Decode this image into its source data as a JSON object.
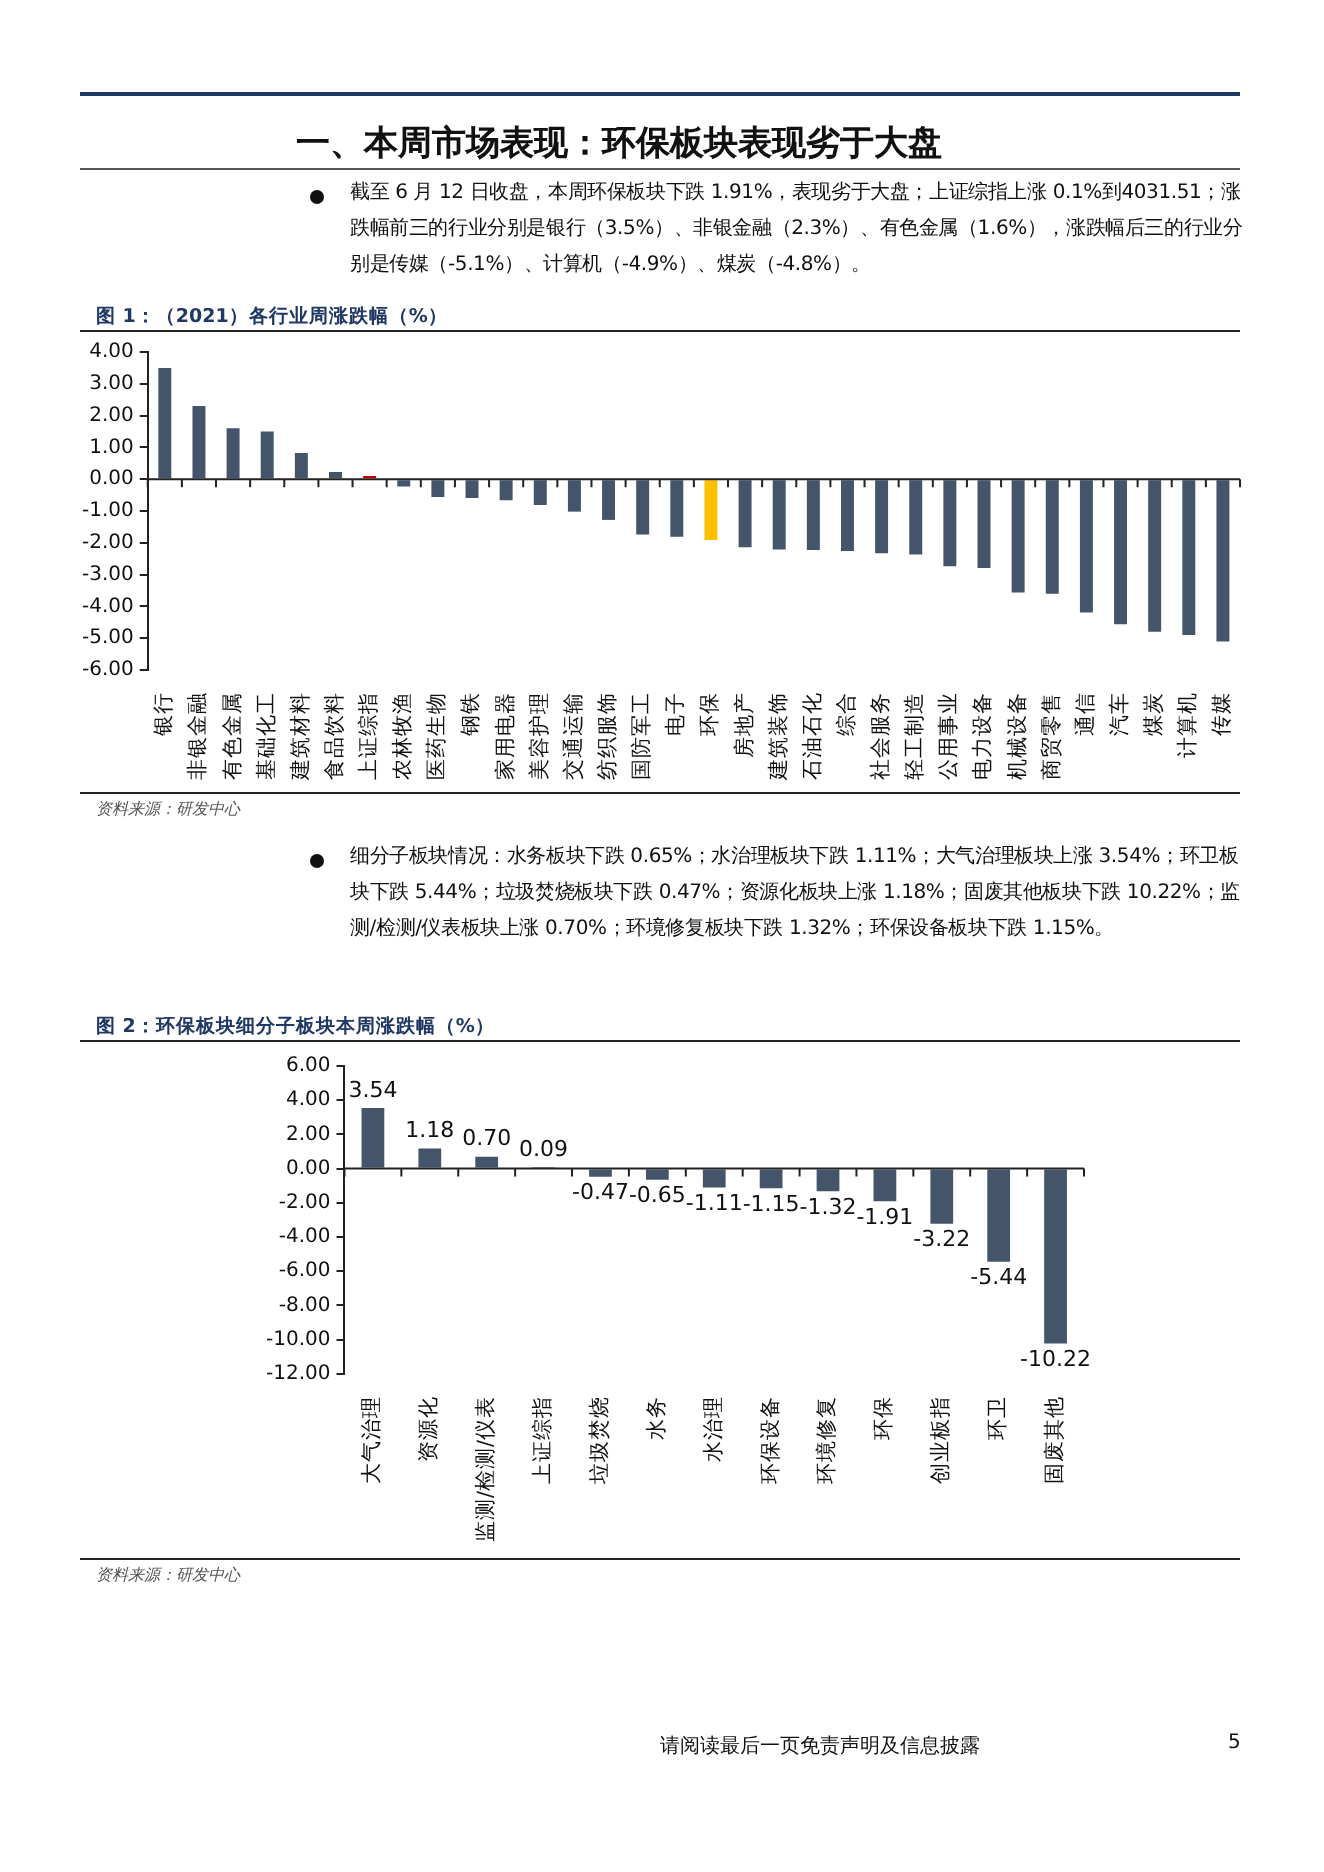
{
  "chart_data": [
    {
      "type": "bar",
      "title": "图 1：（2021）各行业周涨跌幅（%）",
      "annotations": [
        "一、本周市场表现：环保板块表现劣于大盘",
        "截至 6 月 12 日收盘，本周环保板块下跌 1.91%，表现劣于大盘；上证综指上涨 0.1%到4031.51；涨跌幅前三的行业分别是银行（3.5%）、非银金融（2.3%）、有色金属（1.6%），涨跌幅后三的行业分别是传媒（-5.1%）、计算机（-4.9%）、煤炭（-4.8%）。",
        "资料来源：研发中心"
      ],
      "categories": [
        "银行",
        "非银金融",
        "有色金属",
        "基础化工",
        "建筑材料",
        "食品饮料",
        "上证综指",
        "农林牧渔",
        "医药生物",
        "钢铁",
        "家用电器",
        "美容护理",
        "交通运输",
        "纺织服饰",
        "国防军工",
        "电子",
        "环保",
        "房地产",
        "建筑装饰",
        "石油石化",
        "综合",
        "社会服务",
        "轻工制造",
        "公用事业",
        "电力设备",
        "机械设备",
        "商贸零售",
        "通信",
        "汽车",
        "煤炭",
        "计算机",
        "传媒"
      ],
      "values": [
        3.5,
        2.3,
        1.6,
        1.5,
        0.82,
        0.23,
        0.1,
        -0.23,
        -0.56,
        -0.59,
        -0.66,
        -0.81,
        -1.02,
        -1.28,
        -1.74,
        -1.81,
        -1.91,
        -2.14,
        -2.21,
        -2.23,
        -2.26,
        -2.33,
        -2.37,
        -2.74,
        -2.79,
        -3.56,
        -3.6,
        -4.19,
        -4.56,
        -4.8,
        -4.9,
        -5.1
      ],
      "colors": [
        "#44546a",
        "#44546a",
        "#44546a",
        "#44546a",
        "#44546a",
        "#44546a",
        "#c00000",
        "#44546a",
        "#44546a",
        "#44546a",
        "#44546a",
        "#44546a",
        "#44546a",
        "#44546a",
        "#44546a",
        "#44546a",
        "#ffc000",
        "#44546a",
        "#44546a",
        "#44546a",
        "#44546a",
        "#44546a",
        "#44546a",
        "#44546a",
        "#44546a",
        "#44546a",
        "#44546a",
        "#44546a",
        "#44546a",
        "#44546a",
        "#44546a",
        "#44546a"
      ],
      "ylim": [
        -6,
        4
      ],
      "yticks": [
        {
          "value": 4,
          "label": "4.00"
        },
        {
          "value": 3,
          "label": "3.00"
        },
        {
          "value": 2,
          "label": "2.00"
        },
        {
          "value": 1,
          "label": "1.00"
        },
        {
          "value": 0,
          "label": "0.00"
        },
        {
          "value": -1,
          "label": "-1.00"
        },
        {
          "value": -2,
          "label": "-2.00"
        },
        {
          "value": -3,
          "label": "-3.00"
        },
        {
          "value": -4,
          "label": "-4.00"
        },
        {
          "value": -5,
          "label": "-5.00"
        },
        {
          "value": -6,
          "label": "-6.00"
        }
      ]
    },
    {
      "type": "bar",
      "title": "图 2：环保板块细分子板块本周涨跌幅（%）",
      "annotations": [
        "细分子板块情况：水务板块下跌 0.65%；水治理板块下跌 1.11%；大气治理板块上涨 3.54%；环卫板块下跌 5.44%；垃圾焚烧板块下跌 0.47%；资源化板块上涨 1.18%；固废其他板块下跌 10.22%；监测/检测/仪表板块上涨 0.70%；环境修复板块下跌 1.32%；环保设备板块下跌 1.15%。",
        "资料来源：研发中心",
        "请阅读最后一页免责声明及信息披露",
        "5"
      ],
      "categories": [
        "大气治理",
        "资源化",
        "监测/检测/仪表",
        "上证综指",
        "垃圾焚烧",
        "水务",
        "水治理",
        "环保设备",
        "环境修复",
        "环保",
        "创业板指",
        "环卫",
        "固废其他"
      ],
      "values": [
        3.54,
        1.18,
        0.7,
        0.09,
        -0.47,
        -0.65,
        -1.11,
        -1.15,
        -1.32,
        -1.91,
        -3.22,
        -5.44,
        -10.22
      ],
      "value_labels": [
        "3.54",
        "1.18",
        "0.70",
        "0.09",
        "-0.47",
        "-0.65",
        "-1.11",
        "-1.15",
        "-1.32",
        "-1.91",
        "-3.22",
        "-5.44",
        "-10.22"
      ],
      "color": "#44546a",
      "ylim": [
        -12,
        6
      ],
      "yticks": [
        {
          "value": 6,
          "label": "6.00"
        },
        {
          "value": 4,
          "label": "4.00"
        },
        {
          "value": 2,
          "label": "2.00"
        },
        {
          "value": 0,
          "label": "0.00"
        },
        {
          "value": -2,
          "label": "-2.00"
        },
        {
          "value": -4,
          "label": "-4.00"
        },
        {
          "value": -6,
          "label": "-6.00"
        },
        {
          "value": -8,
          "label": "-8.00"
        },
        {
          "value": -10,
          "label": "-10.00"
        },
        {
          "value": -12,
          "label": "-12.00"
        }
      ]
    }
  ]
}
